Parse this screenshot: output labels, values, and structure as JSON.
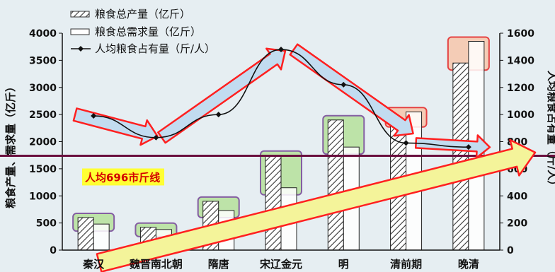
{
  "chart_data": {
    "type": "bar",
    "categories": [
      "秦汉",
      "魏晋南北朝",
      "隋唐",
      "宋辽金元",
      "明",
      "清前期",
      "晚清"
    ],
    "series": [
      {
        "name": "粮食总产量（亿斤）",
        "axis": "left",
        "values": [
          600,
          420,
          900,
          1750,
          2400,
          2400,
          3450
        ]
      },
      {
        "name": "粮食总需求量（亿斤）",
        "axis": "left",
        "values": [
          480,
          380,
          730,
          1150,
          1900,
          2550,
          3850
        ]
      },
      {
        "name": "人均粮食占有量（斤/人）",
        "axis": "right",
        "type": "line",
        "values": [
          990,
          830,
          1000,
          1480,
          1220,
          790,
          760
        ]
      }
    ],
    "ylabel": "粮食产量、需求量（亿斤）",
    "y2label": "人均粮食占有量（斤/人）",
    "ylim": [
      0,
      4000
    ],
    "y2lim": [
      0,
      1600
    ],
    "yticks": [
      "0",
      "500",
      "1000",
      "1500",
      "2000",
      "2500",
      "3000",
      "3500",
      "4000"
    ],
    "y2ticks": [
      "0",
      "200",
      "400",
      "600",
      "800",
      "1000",
      "1200",
      "1400",
      "1600"
    ],
    "reference_line": {
      "label": "人均696市斤线",
      "value": 696,
      "axis": "right"
    },
    "legend_placement": "top-left",
    "colors": {
      "ref_line": "#6a0f3e",
      "ref_label_bg": "#ffff33",
      "ref_label_text": "#d40000",
      "arrow_red": "#ff2020",
      "arrow_blue_fill": "#c2dcf0",
      "arrow_yellow_fill": "#f4f49a",
      "box_green": "#b9e2a0",
      "box_green_border": "#7a4f9a",
      "box_orange": "#f6c9b0",
      "box_orange_border": "#e53030"
    }
  }
}
